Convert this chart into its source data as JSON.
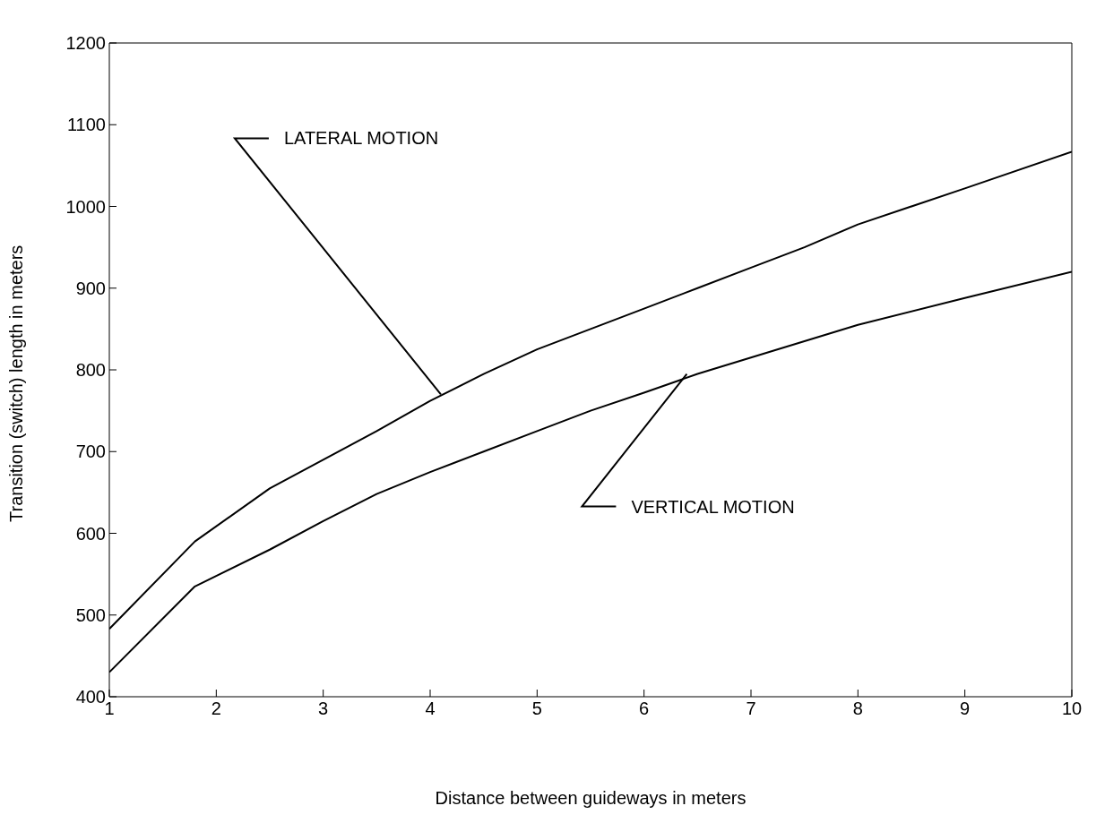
{
  "chart_data": {
    "type": "line",
    "xlabel": "Distance between guideways in meters",
    "ylabel": "Transition (switch) length in meters",
    "x": [
      1,
      1.8,
      2.5,
      3,
      3.5,
      4,
      4.5,
      5,
      5.5,
      6,
      6.5,
      7,
      7.5,
      8,
      9,
      10
    ],
    "series": [
      {
        "color": "#000000",
        "values": [
          483,
          590,
          655,
          690,
          725,
          762,
          795,
          825,
          850,
          875,
          900,
          925,
          950,
          978,
          1022,
          1067
        ]
      },
      {
        "color": "#000000",
        "values": [
          430,
          535,
          580,
          615,
          648,
          675,
          700,
          725,
          750,
          772,
          795,
          815,
          835,
          855,
          888,
          920
        ]
      }
    ],
    "xlim": [
      1,
      10
    ],
    "xticks": [
      1,
      2,
      3,
      4,
      5,
      6,
      7,
      8,
      9,
      10
    ],
    "ylim": [
      400,
      1200
    ],
    "yticks": [
      400,
      500,
      600,
      700,
      800,
      900,
      1000,
      1100,
      1200
    ],
    "grid": false,
    "legend": false,
    "marker": "none",
    "line_style": "solid",
    "annotations": [
      {
        "text": "LATERAL MOTION",
        "x": 4.1,
        "y": 770
      },
      {
        "text": "VERTICAL MOTION",
        "x": 6.4,
        "y": 795
      }
    ]
  }
}
